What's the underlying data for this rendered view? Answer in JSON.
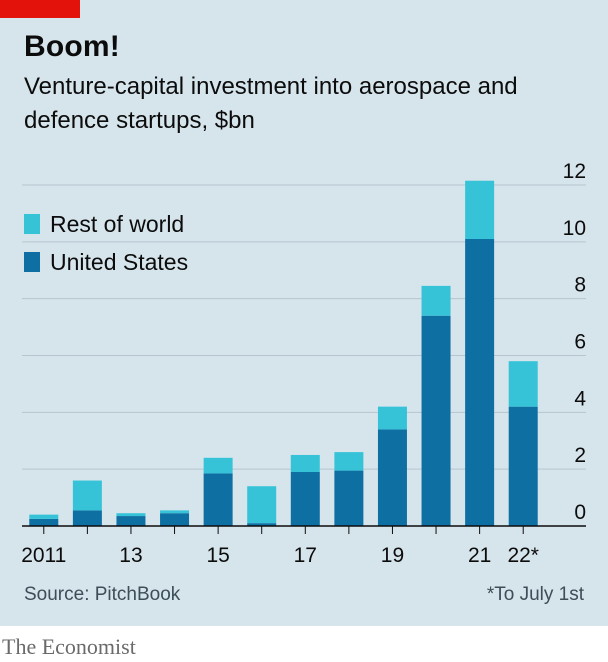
{
  "header": {
    "title": "Boom!",
    "subtitle": "Venture-capital investment into aerospace and defence startups, $bn"
  },
  "footer": {
    "source": "Source: PitchBook",
    "note": "*To July 1st",
    "brand": "The Economist"
  },
  "colors": {
    "background": "#d6e4ec",
    "accent": "#e3120b",
    "united_states": "#0e6fa3",
    "rest_of_world": "#36c3d8"
  },
  "chart_data": {
    "type": "bar",
    "stacked": true,
    "categories": [
      "2011",
      "2012",
      "2013",
      "2014",
      "2015",
      "2016",
      "2017",
      "2018",
      "2019",
      "2020",
      "2021",
      "2022*"
    ],
    "x_tick_labels": [
      "2011",
      "",
      "13",
      "",
      "15",
      "",
      "17",
      "",
      "19",
      "",
      "21",
      "22*"
    ],
    "series": [
      {
        "name": "United States",
        "color": "#0e6fa3",
        "values": [
          0.25,
          0.55,
          0.35,
          0.45,
          1.85,
          0.1,
          1.9,
          1.95,
          3.4,
          7.4,
          10.1,
          4.2
        ]
      },
      {
        "name": "Rest of world",
        "color": "#36c3d8",
        "values": [
          0.15,
          1.05,
          0.1,
          0.1,
          0.55,
          1.3,
          0.6,
          0.65,
          0.8,
          1.05,
          2.05,
          1.6
        ]
      }
    ],
    "legend": [
      "Rest of world",
      "United States"
    ],
    "legend_position": "top-left",
    "ylim": [
      0,
      12
    ],
    "y_ticks": [
      0,
      2,
      4,
      6,
      8,
      10,
      12
    ],
    "y_axis_side": "right",
    "grid": true,
    "xlabel": "",
    "ylabel": ""
  }
}
